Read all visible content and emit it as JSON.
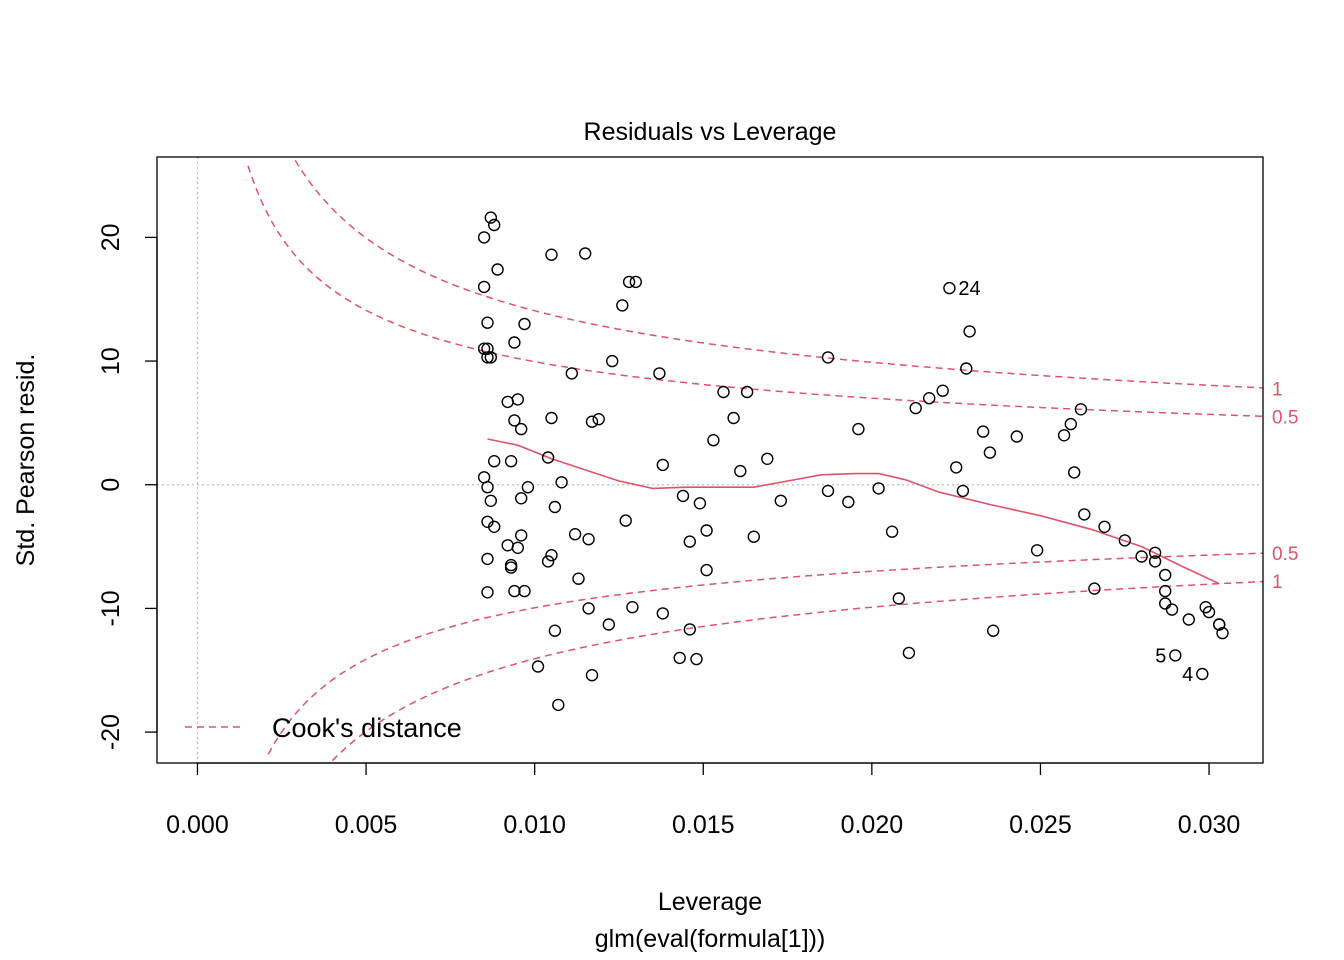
{
  "chart_data": {
    "type": "scatter",
    "title": "Residuals vs Leverage",
    "xlabel": "Leverage",
    "sublabel": "glm(eval(formula[1]))",
    "ylabel": "Std. Pearson resid.",
    "xlim": [
      -0.0012,
      0.0316
    ],
    "ylim": [
      -22.5,
      26.5
    ],
    "x_ticks": [
      0.0,
      0.005,
      0.01,
      0.015,
      0.02,
      0.025,
      0.03
    ],
    "x_tick_labels": [
      "0.000",
      "0.005",
      "0.010",
      "0.015",
      "0.020",
      "0.025",
      "0.030"
    ],
    "y_ticks": [
      -20,
      -10,
      0,
      10,
      20
    ],
    "y_tick_labels": [
      "-20",
      "-10",
      "0",
      "10",
      "20"
    ],
    "colors": {
      "points": "#000000",
      "smooth": "#DF536B",
      "cook": "#DF536B",
      "reference": "#BEBEBE",
      "frame": "#000000"
    },
    "reference_lines": {
      "h": 0,
      "v": 0
    },
    "points": [
      [
        0.0085,
        20.0
      ],
      [
        0.0087,
        21.6
      ],
      [
        0.0088,
        21.0
      ],
      [
        0.0089,
        17.4
      ],
      [
        0.0085,
        16.0
      ],
      [
        0.0086,
        13.1
      ],
      [
        0.0097,
        13.0
      ],
      [
        0.0094,
        11.5
      ],
      [
        0.0085,
        11.0
      ],
      [
        0.0086,
        11.0
      ],
      [
        0.0086,
        10.3
      ],
      [
        0.0087,
        10.3
      ],
      [
        0.0105,
        18.6
      ],
      [
        0.0115,
        18.7
      ],
      [
        0.0128,
        16.4
      ],
      [
        0.013,
        16.4
      ],
      [
        0.0126,
        14.5
      ],
      [
        0.0123,
        10.0
      ],
      [
        0.0111,
        9.0
      ],
      [
        0.0137,
        9.0
      ],
      [
        0.0092,
        6.7
      ],
      [
        0.0095,
        6.9
      ],
      [
        0.0105,
        5.4
      ],
      [
        0.0094,
        5.2
      ],
      [
        0.0117,
        5.1
      ],
      [
        0.0119,
        5.3
      ],
      [
        0.0096,
        4.5
      ],
      [
        0.0088,
        1.9
      ],
      [
        0.0093,
        1.9
      ],
      [
        0.0104,
        2.2
      ],
      [
        0.0085,
        0.6
      ],
      [
        0.0086,
        -0.2
      ],
      [
        0.0087,
        -1.3
      ],
      [
        0.0098,
        -0.2
      ],
      [
        0.0108,
        0.2
      ],
      [
        0.0096,
        -1.1
      ],
      [
        0.0106,
        -1.8
      ],
      [
        0.0086,
        -3.0
      ],
      [
        0.0088,
        -3.4
      ],
      [
        0.0092,
        -4.9
      ],
      [
        0.0096,
        -4.1
      ],
      [
        0.0095,
        -5.1
      ],
      [
        0.0086,
        -6.0
      ],
      [
        0.0093,
        -6.5
      ],
      [
        0.0093,
        -6.7
      ],
      [
        0.0105,
        -5.7
      ],
      [
        0.0104,
        -6.2
      ],
      [
        0.0112,
        -4.0
      ],
      [
        0.0116,
        -4.4
      ],
      [
        0.0086,
        -8.7
      ],
      [
        0.0094,
        -8.6
      ],
      [
        0.0097,
        -8.6
      ],
      [
        0.0113,
        -7.6
      ],
      [
        0.0116,
        -10.0
      ],
      [
        0.0122,
        -11.3
      ],
      [
        0.0129,
        -9.9
      ],
      [
        0.0106,
        -11.8
      ],
      [
        0.0101,
        -14.7
      ],
      [
        0.0117,
        -15.4
      ],
      [
        0.0107,
        -17.8
      ],
      [
        0.0127,
        -2.9
      ],
      [
        0.0138,
        -10.4
      ],
      [
        0.0143,
        -14.0
      ],
      [
        0.0146,
        -11.7
      ],
      [
        0.0148,
        -14.1
      ],
      [
        0.0138,
        1.6
      ],
      [
        0.0144,
        -0.9
      ],
      [
        0.0149,
        -1.5
      ],
      [
        0.0146,
        -4.6
      ],
      [
        0.0151,
        -3.7
      ],
      [
        0.0151,
        -6.9
      ],
      [
        0.0153,
        3.6
      ],
      [
        0.0156,
        7.5
      ],
      [
        0.0159,
        5.4
      ],
      [
        0.0161,
        1.1
      ],
      [
        0.0163,
        7.5
      ],
      [
        0.0165,
        -4.2
      ],
      [
        0.0169,
        2.1
      ],
      [
        0.0173,
        -1.3
      ],
      [
        0.0187,
        10.3
      ],
      [
        0.0187,
        -0.5
      ],
      [
        0.0193,
        -1.4
      ],
      [
        0.0196,
        4.5
      ],
      [
        0.0202,
        -0.3
      ],
      [
        0.0206,
        -3.8
      ],
      [
        0.0208,
        -9.2
      ],
      [
        0.0211,
        -13.6
      ],
      [
        0.0213,
        6.2
      ],
      [
        0.0217,
        7.0
      ],
      [
        0.0221,
        7.6
      ],
      [
        0.0223,
        15.9
      ],
      [
        0.0225,
        1.4
      ],
      [
        0.0227,
        -0.5
      ],
      [
        0.0228,
        9.4
      ],
      [
        0.0229,
        12.4
      ],
      [
        0.0233,
        4.3
      ],
      [
        0.0235,
        2.6
      ],
      [
        0.0236,
        -11.8
      ],
      [
        0.0243,
        3.9
      ],
      [
        0.0249,
        -5.3
      ],
      [
        0.0257,
        4.0
      ],
      [
        0.0259,
        4.9
      ],
      [
        0.026,
        1.0
      ],
      [
        0.0262,
        6.1
      ],
      [
        0.0263,
        -2.4
      ],
      [
        0.0266,
        -8.4
      ],
      [
        0.0269,
        -3.4
      ],
      [
        0.0275,
        -4.5
      ],
      [
        0.028,
        -5.8
      ],
      [
        0.0284,
        -5.5
      ],
      [
        0.0284,
        -6.2
      ],
      [
        0.0287,
        -7.3
      ],
      [
        0.0287,
        -8.6
      ],
      [
        0.0287,
        -9.6
      ],
      [
        0.0289,
        -10.1
      ],
      [
        0.0294,
        -10.9
      ],
      [
        0.0299,
        -9.9
      ],
      [
        0.03,
        -10.3
      ],
      [
        0.0303,
        -11.3
      ],
      [
        0.0303,
        -11.3
      ],
      [
        0.0304,
        -12.0
      ],
      [
        0.029,
        -13.8
      ],
      [
        0.0298,
        -15.3
      ]
    ],
    "point_labels": [
      {
        "x": 0.0223,
        "y": 15.9,
        "text": "24",
        "side": "right"
      },
      {
        "x": 0.029,
        "y": -13.8,
        "text": "5",
        "side": "left"
      },
      {
        "x": 0.0298,
        "y": -15.3,
        "text": "4",
        "side": "left"
      }
    ],
    "smooth_line": [
      [
        0.0086,
        3.7
      ],
      [
        0.0095,
        3.2
      ],
      [
        0.0105,
        2.1
      ],
      [
        0.0115,
        1.2
      ],
      [
        0.0125,
        0.3
      ],
      [
        0.0135,
        -0.3
      ],
      [
        0.0145,
        -0.2
      ],
      [
        0.0155,
        -0.2
      ],
      [
        0.0165,
        -0.2
      ],
      [
        0.0175,
        0.3
      ],
      [
        0.0185,
        0.8
      ],
      [
        0.0195,
        0.9
      ],
      [
        0.0202,
        0.9
      ],
      [
        0.021,
        0.4
      ],
      [
        0.022,
        -0.6
      ],
      [
        0.0235,
        -1.6
      ],
      [
        0.025,
        -2.5
      ],
      [
        0.0265,
        -3.6
      ],
      [
        0.028,
        -5.0
      ],
      [
        0.0292,
        -6.6
      ],
      [
        0.0303,
        -8.0
      ]
    ],
    "cook_levels": [
      0.5,
      1
    ],
    "cook_labels": [
      {
        "text": "1",
        "y": 7.8
      },
      {
        "text": "0.5",
        "y": 5.5
      },
      {
        "text": "0.5",
        "y": -5.5
      },
      {
        "text": "1",
        "y": -7.8
      }
    ],
    "legend": {
      "label": "Cook's distance",
      "position": "bottom-left"
    }
  }
}
